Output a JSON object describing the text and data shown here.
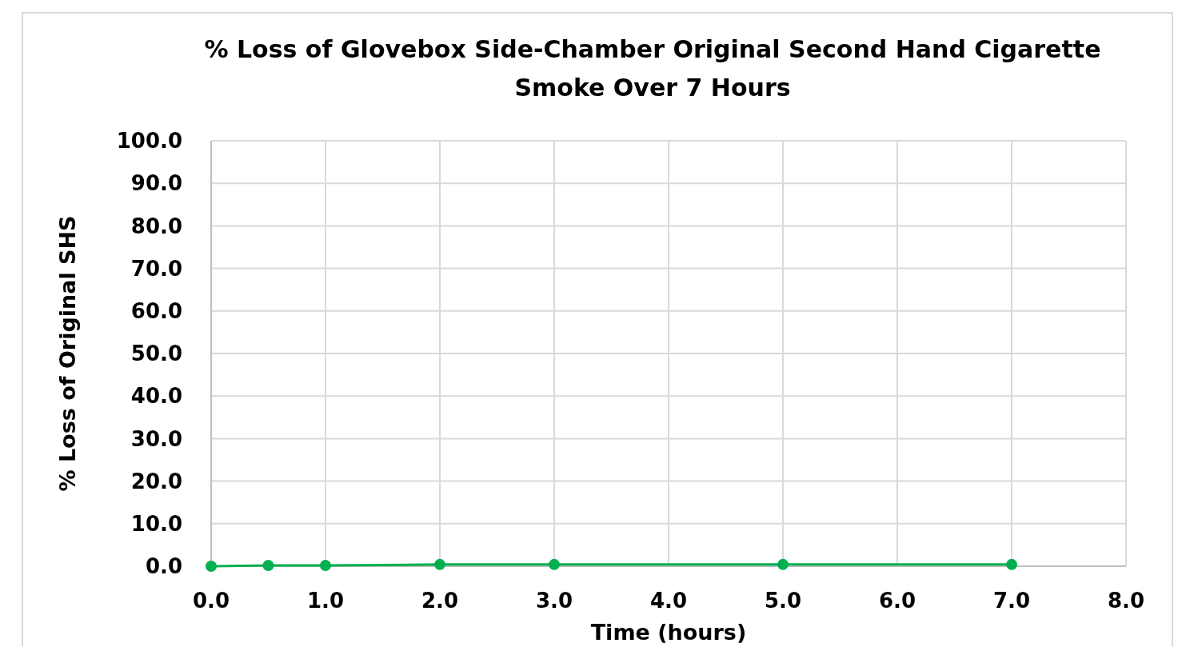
{
  "chart_data": {
    "type": "line",
    "title": "% Loss of Glovebox Side-Chamber Original Second Hand Cigarette Smoke Over 7 Hours",
    "xlabel": "Time (hours)",
    "ylabel": "% Loss of Original SHS",
    "x": [
      0,
      0.5,
      1,
      2,
      3,
      5,
      7
    ],
    "series": [
      {
        "color": "#00b050",
        "values": [
          0,
          0.2,
          0.2,
          0.4,
          0.4,
          0.4,
          0.4
        ]
      }
    ],
    "xlim": [
      0,
      8
    ],
    "xticks": [
      {
        "value": 0,
        "label": "0.0"
      },
      {
        "value": 1,
        "label": "1.0"
      },
      {
        "value": 2,
        "label": "2.0"
      },
      {
        "value": 3,
        "label": "3.0"
      },
      {
        "value": 4,
        "label": "4.0"
      },
      {
        "value": 5,
        "label": "5.0"
      },
      {
        "value": 6,
        "label": "6.0"
      },
      {
        "value": 7,
        "label": "7.0"
      },
      {
        "value": 8,
        "label": "8.0"
      }
    ],
    "ylim": [
      0,
      100
    ],
    "yticks": [
      {
        "value": 0,
        "label": "0.0"
      },
      {
        "value": 10,
        "label": "10.0"
      },
      {
        "value": 20,
        "label": "20.0"
      },
      {
        "value": 30,
        "label": "30.0"
      },
      {
        "value": 40,
        "label": "40.0"
      },
      {
        "value": 50,
        "label": "50.0"
      },
      {
        "value": 60,
        "label": "60.0"
      },
      {
        "value": 70,
        "label": "70.0"
      },
      {
        "value": 80,
        "label": "80.0"
      },
      {
        "value": 90,
        "label": "90.0"
      },
      {
        "value": 100,
        "label": "100.0"
      }
    ],
    "grid": true,
    "marker": "circle",
    "line_style": "solid"
  }
}
